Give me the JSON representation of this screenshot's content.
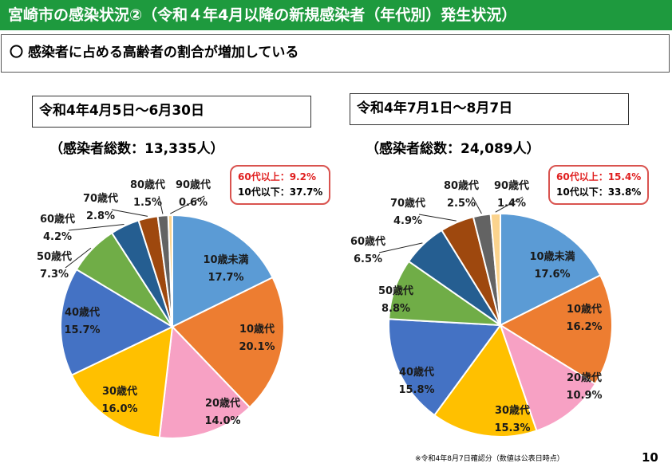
{
  "header": {
    "title": "宮崎市の感染状況②（令和４年4月以降の新規感染者（年代別）発生状況）",
    "subtitle": "〇 感染者に占める高齢者の割合が増加している"
  },
  "colors": {
    "title_bar": "#1e9a3e",
    "ratio_border": "#d9534f",
    "ratio_red": "#e02020"
  },
  "chart_data": [
    {
      "type": "pie",
      "title": "令和4年4月5日～6月30日",
      "total_label": "（感染者総数：13,335人）",
      "ratio_60_label": "60代以上：",
      "ratio_60_value": "9.2%",
      "ratio_10_label": "10代以下：",
      "ratio_10_value": "37.7%",
      "slices": [
        {
          "label": "10歳未満",
          "value": 17.7,
          "value_label": "17.7%",
          "color": "#5b9bd5"
        },
        {
          "label": "10歳代",
          "value": 20.1,
          "value_label": "20.1%",
          "color": "#ed7d31"
        },
        {
          "label": "20歳代",
          "value": 14.0,
          "value_label": "14.0%",
          "color": "#f7a1c4"
        },
        {
          "label": "30歳代",
          "value": 16.0,
          "value_label": "16.0%",
          "color": "#ffc000"
        },
        {
          "label": "40歳代",
          "value": 15.7,
          "value_label": "15.7%",
          "color": "#4472c4"
        },
        {
          "label": "50歳代",
          "value": 7.3,
          "value_label": "7.3%",
          "color": "#70ad47"
        },
        {
          "label": "60歳代",
          "value": 4.2,
          "value_label": "4.2%",
          "color": "#255e91"
        },
        {
          "label": "70歳代",
          "value": 2.8,
          "value_label": "2.8%",
          "color": "#9e480e"
        },
        {
          "label": "80歳代",
          "value": 1.5,
          "value_label": "1.5%",
          "color": "#636363"
        },
        {
          "label": "90歳代",
          "value": 0.6,
          "value_label": "0.6%",
          "color": "#fbd38d"
        }
      ]
    },
    {
      "type": "pie",
      "title": "令和4年7月1日～8月7日",
      "total_label": "（感染者総数：24,089人）",
      "ratio_60_label": "60代以上：",
      "ratio_60_value": "15.4%",
      "ratio_10_label": "10代以下：",
      "ratio_10_value": "33.8%",
      "slices": [
        {
          "label": "10歳未満",
          "value": 17.6,
          "value_label": "17.6%",
          "color": "#5b9bd5"
        },
        {
          "label": "10歳代",
          "value": 16.2,
          "value_label": "16.2%",
          "color": "#ed7d31"
        },
        {
          "label": "20歳代",
          "value": 10.9,
          "value_label": "10.9%",
          "color": "#f7a1c4"
        },
        {
          "label": "30歳代",
          "value": 15.3,
          "value_label": "15.3%",
          "color": "#ffc000"
        },
        {
          "label": "40歳代",
          "value": 15.8,
          "value_label": "15.8%",
          "color": "#4472c4"
        },
        {
          "label": "50歳代",
          "value": 8.8,
          "value_label": "8.8%",
          "color": "#70ad47"
        },
        {
          "label": "60歳代",
          "value": 6.5,
          "value_label": "6.5%",
          "color": "#255e91"
        },
        {
          "label": "70歳代",
          "value": 4.9,
          "value_label": "4.9%",
          "color": "#9e480e"
        },
        {
          "label": "80歳代",
          "value": 2.5,
          "value_label": "2.5%",
          "color": "#636363"
        },
        {
          "label": "90歳代",
          "value": 1.4,
          "value_label": "1.4%",
          "color": "#fbd38d"
        }
      ]
    }
  ],
  "footnote": "※令和4年8月7日確認分（数値は公表日時点）",
  "page_number": "10"
}
